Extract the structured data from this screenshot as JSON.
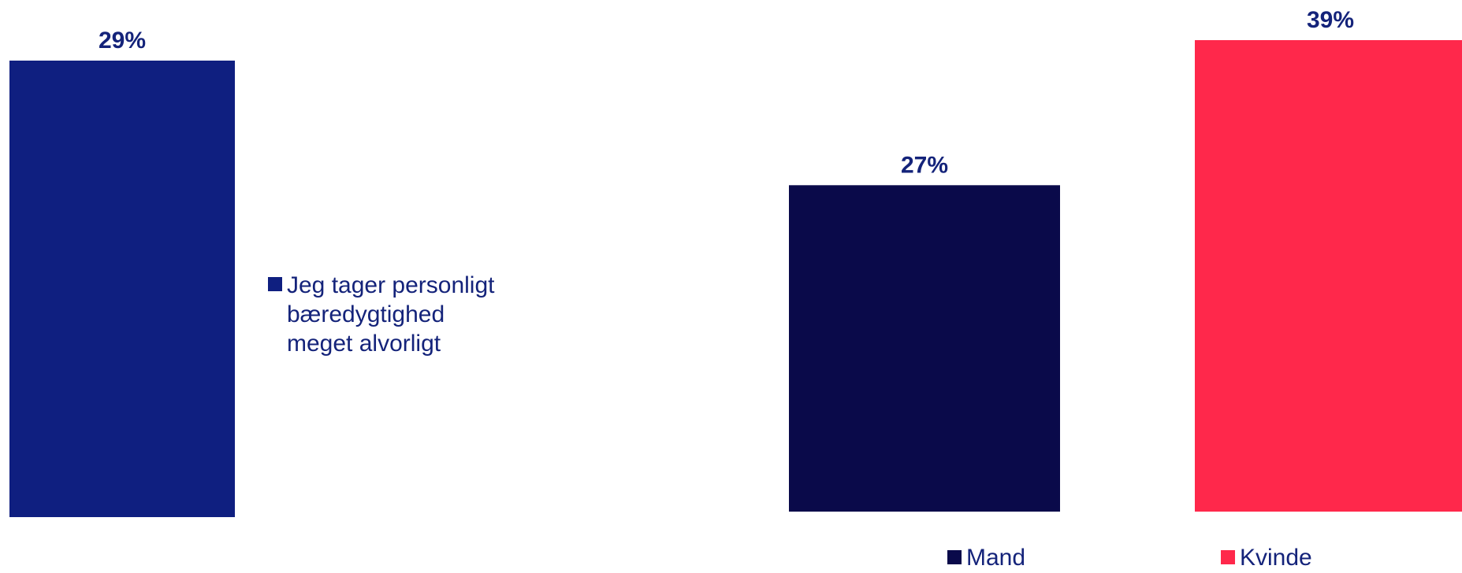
{
  "chart_data": [
    {
      "type": "bar",
      "categories": [
        ""
      ],
      "series": [
        {
          "name": "Jeg tager personligt bæredygtighed meget alvorligt",
          "values": [
            29
          ],
          "color": "#0f1f80"
        }
      ],
      "value_labels": [
        "29%"
      ],
      "legend_lines": [
        "Jeg tager personligt",
        "bæredygtighed",
        "meget alvorligt"
      ],
      "legend_position": "right",
      "label_color": "#14237a"
    },
    {
      "type": "bar",
      "categories": [
        ""
      ],
      "series": [
        {
          "name": "Mand",
          "values": [
            27
          ],
          "color": "#0a0a4a"
        },
        {
          "name": "Kvinde",
          "values": [
            39
          ],
          "color": "#ff284b"
        }
      ],
      "value_labels": [
        "27%",
        "39%"
      ],
      "legend_position": "bottom",
      "label_color": "#14237a"
    }
  ]
}
